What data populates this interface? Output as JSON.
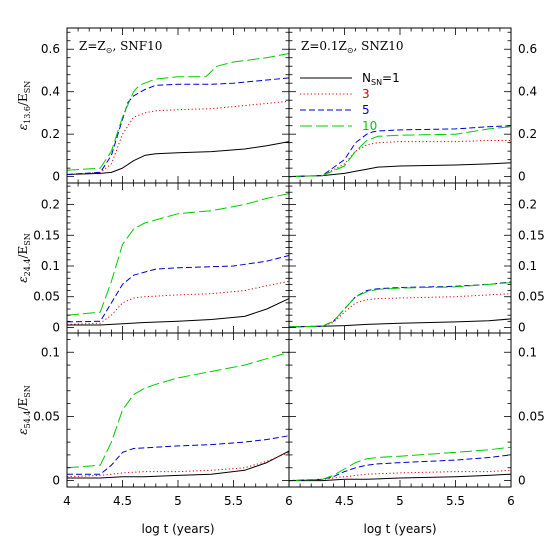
{
  "chart_data": {
    "type": "line",
    "xlabel": "log t (years)",
    "xlim": [
      4,
      6
    ],
    "x_ticks": [
      "4",
      "4.5",
      "5",
      "5.5",
      "6"
    ],
    "legend": {
      "placement": "top-left of top-right panel",
      "entries": [
        {
          "label": "N",
          "label_sub": "SN",
          "label_suffix": "=1",
          "color": "#000000",
          "dash": "solid"
        },
        {
          "label": "3",
          "color": "#dd0000",
          "dash": "dotted"
        },
        {
          "label": "5",
          "color": "#0000cc",
          "dash": "dashed"
        },
        {
          "label": "10",
          "color": "#00cc00",
          "dash": "long-dashed"
        }
      ]
    },
    "panels": [
      {
        "row": 0,
        "col": 0,
        "annotation": {
          "pre": "Z=Z",
          "sub": "⊙",
          "post": ",  SNF10"
        },
        "ylabel": {
          "main": "ε",
          "sub": "13.6",
          "rest": "/E",
          "sub2": "SN"
        },
        "ylim": [
          -0.03,
          0.7
        ],
        "y_ticks": [
          "0",
          "0.2",
          "0.4",
          "0.6"
        ],
        "series": [
          {
            "name": "1",
            "x": [
              4,
              4.3,
              4.4,
              4.5,
              4.6,
              4.7,
              4.8,
              5,
              5.3,
              5.6,
              5.8,
              6
            ],
            "y": [
              0.01,
              0.015,
              0.02,
              0.04,
              0.075,
              0.1,
              0.108,
              0.112,
              0.118,
              0.13,
              0.145,
              0.165
            ]
          },
          {
            "name": "3",
            "x": [
              4,
              4.3,
              4.4,
              4.5,
              4.6,
              4.7,
              4.8,
              5,
              5.3,
              5.5,
              5.8,
              6
            ],
            "y": [
              0.01,
              0.02,
              0.06,
              0.2,
              0.28,
              0.3,
              0.31,
              0.315,
              0.32,
              0.33,
              0.345,
              0.355
            ]
          },
          {
            "name": "5",
            "x": [
              4,
              4.3,
              4.4,
              4.5,
              4.55,
              4.6,
              4.7,
              4.8,
              5,
              5.3,
              5.5,
              5.8,
              6
            ],
            "y": [
              0.01,
              0.02,
              0.1,
              0.27,
              0.35,
              0.38,
              0.41,
              0.43,
              0.435,
              0.435,
              0.44,
              0.455,
              0.465
            ]
          },
          {
            "name": "10",
            "x": [
              4,
              4.3,
              4.4,
              4.5,
              4.6,
              4.65,
              4.7,
              4.8,
              5,
              5.25,
              5.35,
              5.5,
              5.8,
              6
            ],
            "y": [
              0.03,
              0.04,
              0.12,
              0.28,
              0.4,
              0.43,
              0.44,
              0.46,
              0.47,
              0.47,
              0.52,
              0.54,
              0.56,
              0.58
            ]
          }
        ]
      },
      {
        "row": 0,
        "col": 1,
        "annotation": {
          "pre": "Z=0.1Z",
          "sub": "⊙",
          "post": ",  SNZ10"
        },
        "ylim": [
          -0.03,
          0.7
        ],
        "y_ticks": [
          "0",
          "0.2",
          "0.4",
          "0.6"
        ],
        "series": [
          {
            "name": "1",
            "x": [
              4,
              4.3,
              4.5,
              4.6,
              4.7,
              4.8,
              5,
              5.5,
              5.8,
              6
            ],
            "y": [
              0,
              0.005,
              0.015,
              0.025,
              0.035,
              0.045,
              0.05,
              0.055,
              0.06,
              0.065
            ]
          },
          {
            "name": "3",
            "x": [
              4,
              4.3,
              4.5,
              4.6,
              4.7,
              4.8,
              5,
              5.5,
              5.8,
              6
            ],
            "y": [
              0,
              0.005,
              0.06,
              0.12,
              0.15,
              0.16,
              0.165,
              0.165,
              0.17,
              0.17
            ]
          },
          {
            "name": "5",
            "x": [
              4,
              4.3,
              4.5,
              4.6,
              4.7,
              4.75,
              4.8,
              5,
              5.5,
              5.8,
              6
            ],
            "y": [
              0,
              0.005,
              0.08,
              0.16,
              0.2,
              0.21,
              0.215,
              0.22,
              0.225,
              0.235,
              0.24
            ]
          },
          {
            "name": "10",
            "x": [
              4,
              4.3,
              4.5,
              4.6,
              4.7,
              4.8,
              5,
              5.5,
              5.8,
              6
            ],
            "y": [
              0,
              0.005,
              0.05,
              0.12,
              0.17,
              0.19,
              0.195,
              0.2,
              0.225,
              0.235
            ]
          }
        ]
      },
      {
        "row": 1,
        "col": 0,
        "ylabel": {
          "main": "ε",
          "sub": "24.4",
          "rest": "/E",
          "sub2": "SN"
        },
        "ylim": [
          -0.009,
          0.235
        ],
        "y_ticks": [
          "0",
          "0.05",
          "0.1",
          "0.15",
          "0.2"
        ],
        "series": [
          {
            "name": "1",
            "x": [
              4,
              4.3,
              4.5,
              4.7,
              5,
              5.3,
              5.6,
              5.8,
              6
            ],
            "y": [
              0.004,
              0.004,
              0.006,
              0.008,
              0.01,
              0.013,
              0.018,
              0.03,
              0.047
            ]
          },
          {
            "name": "3",
            "x": [
              4,
              4.3,
              4.4,
              4.5,
              4.6,
              4.7,
              4.8,
              5,
              5.3,
              5.6,
              5.8,
              6
            ],
            "y": [
              0.005,
              0.007,
              0.02,
              0.04,
              0.048,
              0.05,
              0.051,
              0.053,
              0.055,
              0.06,
              0.068,
              0.075
            ]
          },
          {
            "name": "5",
            "x": [
              4,
              4.3,
              4.4,
              4.5,
              4.6,
              4.7,
              4.8,
              5,
              5.5,
              5.8,
              6
            ],
            "y": [
              0.009,
              0.01,
              0.04,
              0.07,
              0.085,
              0.09,
              0.095,
              0.097,
              0.1,
              0.108,
              0.117
            ]
          },
          {
            "name": "10",
            "x": [
              4,
              4.3,
              4.4,
              4.5,
              4.6,
              4.7,
              4.8,
              5,
              5.3,
              5.6,
              5.8,
              6
            ],
            "y": [
              0.02,
              0.025,
              0.075,
              0.135,
              0.16,
              0.17,
              0.175,
              0.185,
              0.19,
              0.2,
              0.21,
              0.218
            ]
          }
        ]
      },
      {
        "row": 1,
        "col": 1,
        "ylim": [
          -0.009,
          0.235
        ],
        "y_ticks": [
          "0",
          "0.05",
          "0.1",
          "0.15",
          "0.2"
        ],
        "series": [
          {
            "name": "1",
            "x": [
              4,
              4.3,
              4.5,
              4.7,
              5,
              5.5,
              5.8,
              6
            ],
            "y": [
              0.001,
              0.002,
              0.003,
              0.005,
              0.007,
              0.009,
              0.011,
              0.014
            ]
          },
          {
            "name": "3",
            "x": [
              4,
              4.3,
              4.4,
              4.5,
              4.6,
              4.7,
              4.8,
              5,
              5.5,
              5.8,
              6
            ],
            "y": [
              0.001,
              0.002,
              0.008,
              0.025,
              0.04,
              0.045,
              0.047,
              0.048,
              0.05,
              0.053,
              0.055
            ]
          },
          {
            "name": "5",
            "x": [
              4,
              4.3,
              4.4,
              4.5,
              4.6,
              4.7,
              4.8,
              5,
              5.5,
              5.8,
              6
            ],
            "y": [
              0.001,
              0.002,
              0.01,
              0.03,
              0.05,
              0.06,
              0.063,
              0.065,
              0.067,
              0.07,
              0.074
            ]
          },
          {
            "name": "10",
            "x": [
              4,
              4.3,
              4.4,
              4.5,
              4.6,
              4.7,
              4.8,
              5,
              5.5,
              5.8,
              6
            ],
            "y": [
              0.001,
              0.002,
              0.01,
              0.03,
              0.05,
              0.058,
              0.062,
              0.064,
              0.066,
              0.07,
              0.073
            ]
          }
        ]
      },
      {
        "row": 2,
        "col": 0,
        "ylabel": {
          "main": "ε",
          "sub": "54.4",
          "rest": "/E",
          "sub2": "SN"
        },
        "ylim": [
          -0.005,
          0.115
        ],
        "y_ticks": [
          "0",
          "0.05",
          "0.1"
        ],
        "series": [
          {
            "name": "1",
            "x": [
              4,
              4.3,
              4.5,
              4.7,
              5,
              5.3,
              5.6,
              5.8,
              6
            ],
            "y": [
              0.002,
              0.002,
              0.003,
              0.003,
              0.004,
              0.005,
              0.008,
              0.014,
              0.023
            ]
          },
          {
            "name": "3",
            "x": [
              4,
              4.3,
              4.4,
              4.5,
              4.7,
              5,
              5.3,
              5.6,
              5.8,
              6
            ],
            "y": [
              0.003,
              0.004,
              0.005,
              0.006,
              0.007,
              0.007,
              0.008,
              0.01,
              0.015,
              0.022
            ]
          },
          {
            "name": "5",
            "x": [
              4,
              4.3,
              4.4,
              4.5,
              4.6,
              4.8,
              5,
              5.3,
              5.6,
              5.8,
              6
            ],
            "y": [
              0.005,
              0.005,
              0.012,
              0.022,
              0.025,
              0.026,
              0.027,
              0.028,
              0.03,
              0.032,
              0.035
            ]
          },
          {
            "name": "10",
            "x": [
              4,
              4.3,
              4.4,
              4.5,
              4.6,
              4.7,
              4.8,
              5,
              5.3,
              5.6,
              5.8,
              6
            ],
            "y": [
              0.01,
              0.012,
              0.03,
              0.055,
              0.067,
              0.072,
              0.075,
              0.08,
              0.085,
              0.09,
              0.095,
              0.1
            ]
          }
        ]
      },
      {
        "row": 2,
        "col": 1,
        "ylim": [
          -0.005,
          0.115
        ],
        "y_ticks": [
          "0",
          "0.05",
          "0.1"
        ],
        "series": [
          {
            "name": "1",
            "x": [
              4,
              4.3,
              4.5,
              4.7,
              5,
              5.5,
              5.8,
              6
            ],
            "y": [
              0,
              0,
              0.001,
              0.001,
              0.002,
              0.003,
              0.004,
              0.005
            ]
          },
          {
            "name": "3",
            "x": [
              4,
              4.3,
              4.5,
              4.7,
              5,
              5.5,
              5.8,
              6
            ],
            "y": [
              0,
              0.001,
              0.003,
              0.005,
              0.006,
              0.007,
              0.007,
              0.008
            ]
          },
          {
            "name": "5",
            "x": [
              4,
              4.3,
              4.4,
              4.5,
              4.6,
              4.7,
              4.8,
              5,
              5.5,
              5.8,
              6
            ],
            "y": [
              0,
              0.001,
              0.003,
              0.007,
              0.01,
              0.012,
              0.013,
              0.014,
              0.016,
              0.018,
              0.02
            ]
          },
          {
            "name": "10",
            "x": [
              4,
              4.3,
              4.4,
              4.5,
              4.6,
              4.7,
              4.8,
              5,
              5.5,
              5.8,
              6
            ],
            "y": [
              0,
              0.001,
              0.004,
              0.009,
              0.014,
              0.017,
              0.018,
              0.019,
              0.022,
              0.024,
              0.026
            ]
          }
        ]
      }
    ]
  }
}
